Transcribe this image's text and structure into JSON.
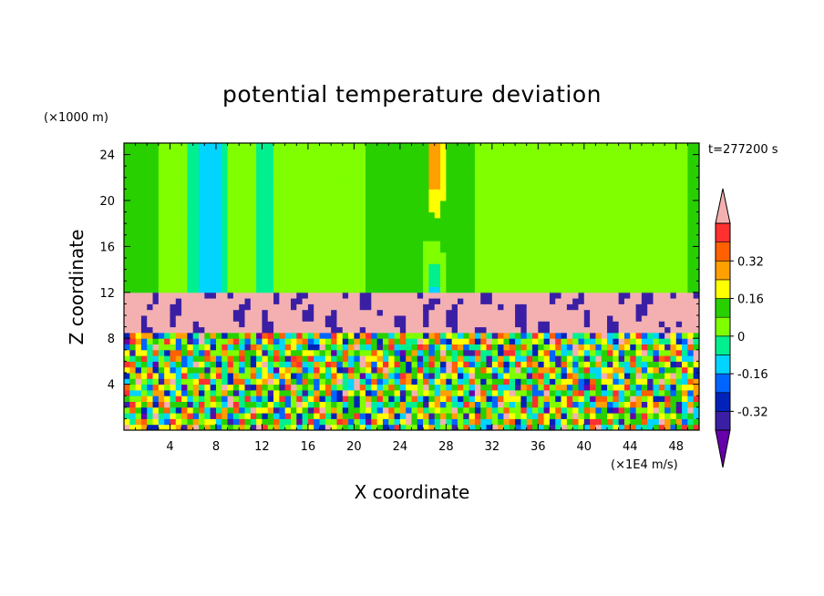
{
  "chart_data": {
    "type": "heatmap",
    "title": "potential temperature deviation",
    "xlabel": "X coordinate",
    "ylabel": "Z coordinate",
    "x_unit": "(×1E4 m/s)",
    "y_unit": "(×1000 m)",
    "time_label": "t=277200 s",
    "xlim": [
      0,
      50
    ],
    "ylim": [
      0,
      25
    ],
    "x_ticks": [
      4,
      8,
      12,
      16,
      20,
      24,
      28,
      32,
      36,
      40,
      44,
      48
    ],
    "y_ticks": [
      4,
      8,
      12,
      16,
      20,
      24
    ],
    "colorbar": {
      "levels": [
        -0.48,
        -0.4,
        -0.32,
        -0.24,
        -0.16,
        -0.08,
        0,
        0.08,
        0.16,
        0.24,
        0.32,
        0.4,
        0.48
      ],
      "labels": [
        "-0.32",
        "-0.16",
        "0",
        "0.16",
        "0.32"
      ],
      "label_values": [
        -0.32,
        -0.16,
        0,
        0.16,
        0.32
      ],
      "colors": [
        "#6600aa",
        "#3a1fa5",
        "#0022b8",
        "#0064ff",
        "#00d4ff",
        "#00f090",
        "#7fff00",
        "#28d000",
        "#ffff00",
        "#ffa000",
        "#ff6000",
        "#ff3030",
        "#f4b0b0"
      ]
    },
    "regions": {
      "stable_layer_top": 12,
      "stable_layer_bottom": 8,
      "upper_anomalies": [
        {
          "x_range": [
            5.5,
            9.5
          ],
          "value": -0.18
        },
        {
          "x_range": [
            26,
            28
          ],
          "value": 0.16
        }
      ]
    }
  }
}
